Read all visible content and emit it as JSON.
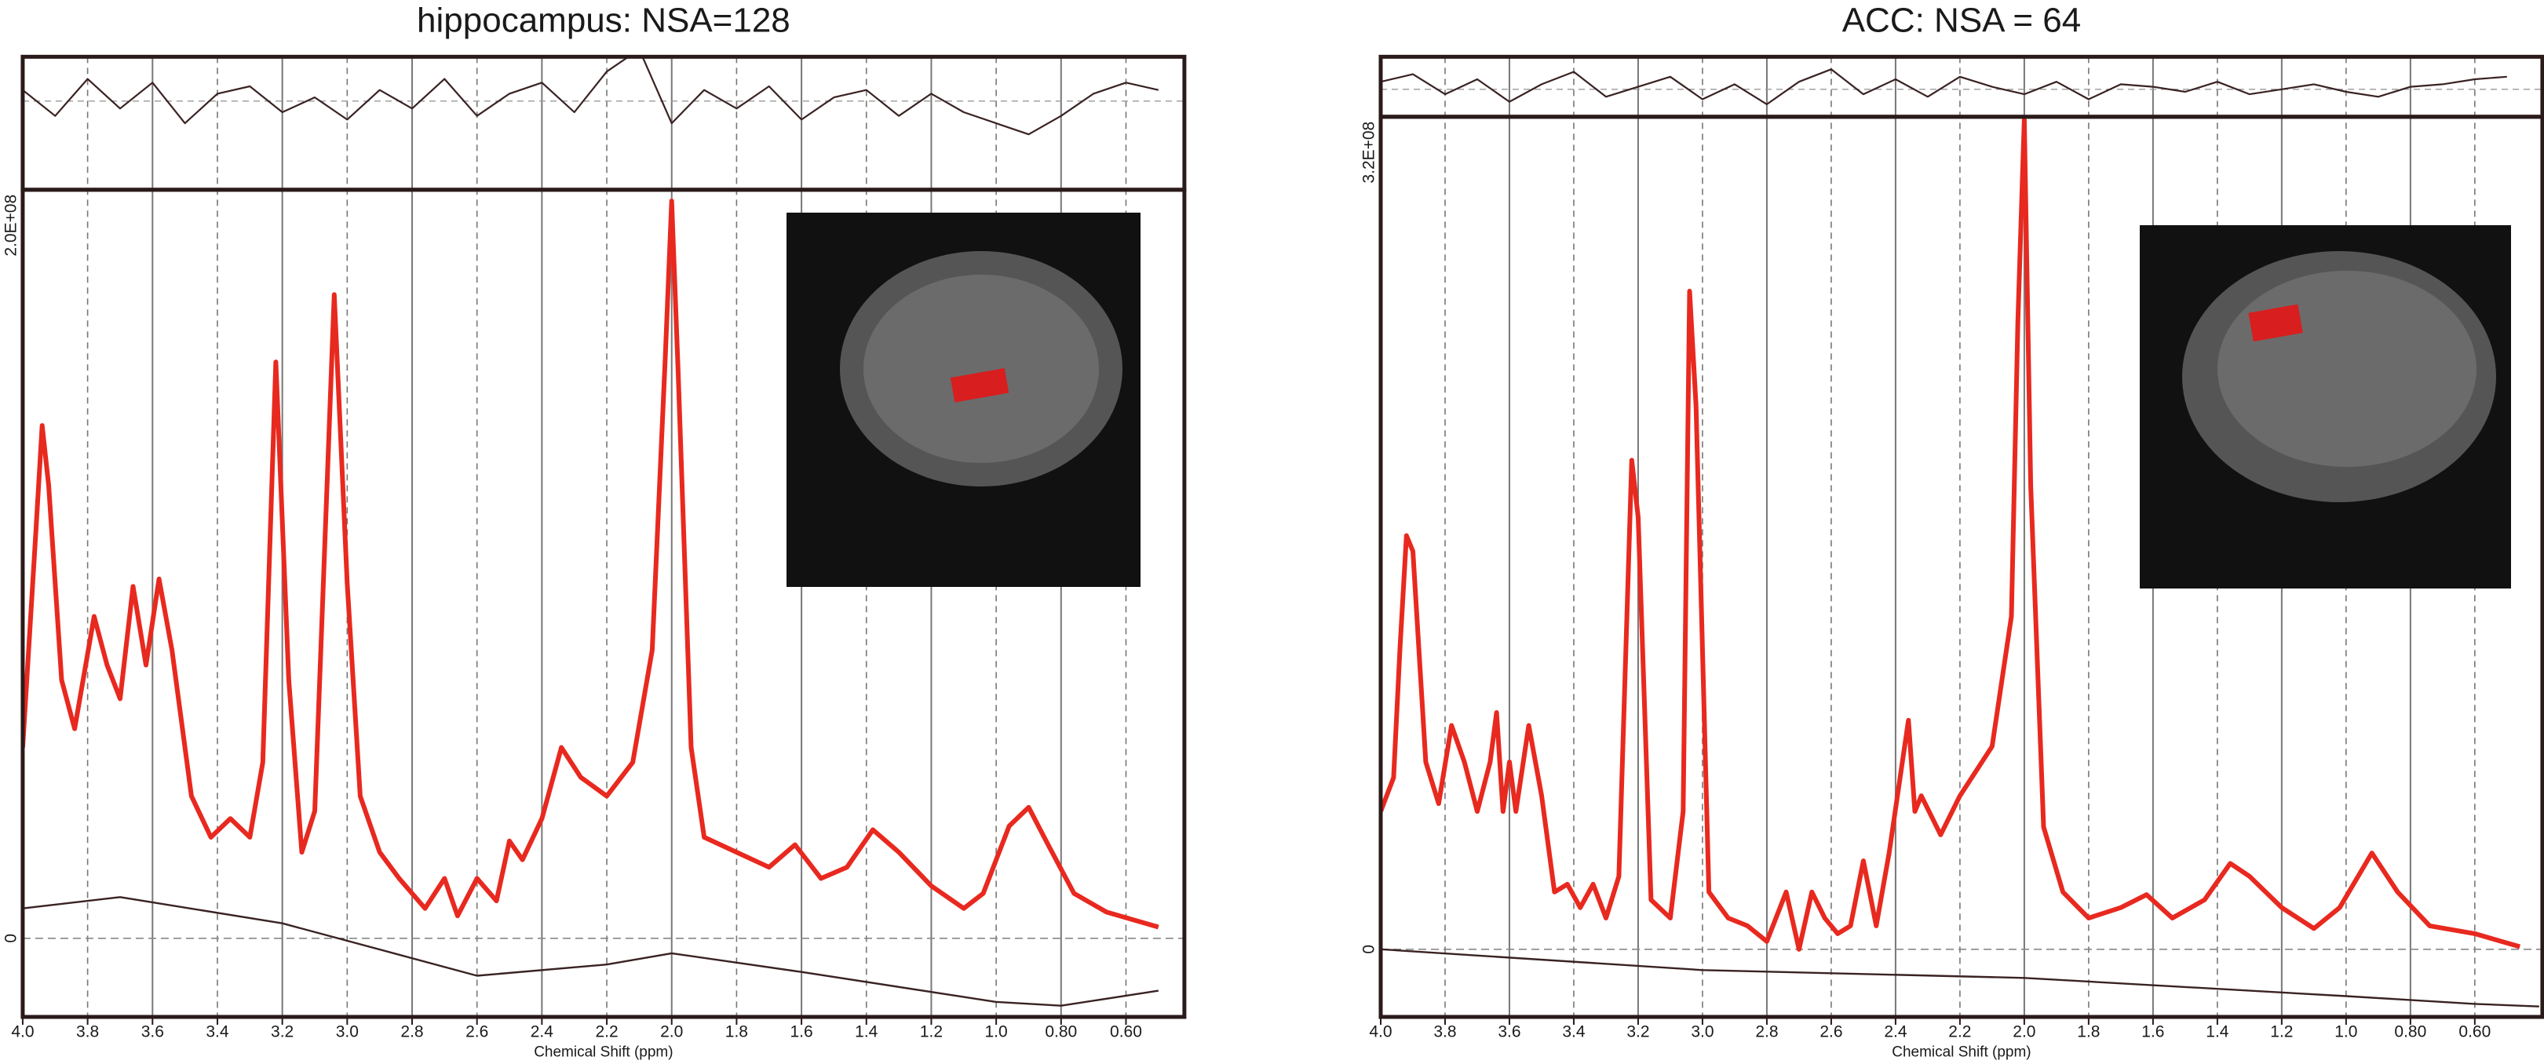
{
  "chart_data": [
    {
      "type": "line",
      "title": "hippocampus: NSA=128",
      "x_label": "Chemical Shift (ppm)",
      "xlim": [
        4.0,
        0.42
      ],
      "xticks": [
        {
          "value": 4.0,
          "label": "4.0"
        },
        3.8,
        3.6,
        3.4,
        3.2,
        {
          "value": 3.0,
          "label": "3.0"
        },
        2.8,
        2.6,
        2.4,
        2.2,
        {
          "value": 2.0,
          "label": "2.0"
        },
        1.8,
        1.6,
        1.4,
        1.2,
        {
          "value": 1.0,
          "label": "1.0"
        },
        {
          "value": 0.8,
          "label": "0.80"
        },
        {
          "value": 0.6,
          "label": "0.60"
        }
      ],
      "ylim": [
        -21000000,
        200000000
      ],
      "yticks": [
        0,
        {
          "value": 200000000,
          "label": "2.0E+08"
        }
      ],
      "series": [
        {
          "color": "#e8291f",
          "x": [
            4.0,
            3.96,
            3.94,
            3.92,
            3.88,
            3.84,
            3.78,
            3.74,
            3.7,
            3.66,
            3.62,
            3.58,
            3.54,
            3.48,
            3.42,
            3.36,
            3.3,
            3.26,
            3.22,
            3.18,
            3.14,
            3.1,
            3.04,
            3.0,
            2.96,
            2.9,
            2.84,
            2.76,
            2.7,
            2.66,
            2.6,
            2.54,
            2.5,
            2.46,
            2.4,
            2.34,
            2.28,
            2.2,
            2.12,
            2.06,
            2.02,
            2.0,
            1.98,
            1.94,
            1.9,
            1.8,
            1.7,
            1.62,
            1.54,
            1.46,
            1.38,
            1.3,
            1.2,
            1.1,
            1.04,
            0.96,
            0.9,
            0.84,
            0.76,
            0.66,
            0.5
          ],
          "values": [
            51000000,
            108000000,
            137000000,
            121000000,
            69000000,
            56000000,
            86000000,
            73000000,
            64000000,
            94000000,
            73000000,
            96000000,
            77000000,
            38000000,
            27000000,
            32000000,
            27000000,
            47000000,
            154000000,
            69000000,
            23000000,
            34000000,
            172000000,
            95000000,
            38000000,
            23000000,
            16000000,
            8000000,
            16000000,
            6000000,
            16000000,
            10000000,
            26000000,
            21000000,
            32000000,
            51000000,
            43000000,
            38000000,
            47000000,
            77000000,
            155000000,
            197000000,
            151000000,
            51000000,
            27000000,
            23000000,
            19000000,
            25000000,
            16000000,
            19000000,
            29000000,
            23000000,
            14000000,
            8000000,
            12000000,
            30000000,
            35000000,
            25000000,
            12000000,
            7000000,
            3000000
          ]
        },
        {
          "color": "#3a2222",
          "x": [
            4.0,
            3.7,
            3.2,
            2.6,
            2.2,
            2.0,
            1.6,
            1.0,
            0.8,
            0.5
          ],
          "values": [
            8000000,
            11000000,
            4000000,
            -10000000,
            -7000000,
            -4000000,
            -9000000,
            -17000000,
            -18000000,
            -14000000
          ]
        }
      ],
      "residual": {
        "color": "#3a2222",
        "ylim": [
          -24000000,
          12000000
        ],
        "x": [
          4.0,
          3.9,
          3.8,
          3.7,
          3.6,
          3.5,
          3.4,
          3.3,
          3.2,
          3.1,
          3.0,
          2.9,
          2.8,
          2.7,
          2.6,
          2.5,
          2.4,
          2.3,
          2.2,
          2.1,
          2.0,
          1.9,
          1.8,
          1.7,
          1.6,
          1.5,
          1.4,
          1.3,
          1.2,
          1.1,
          1.0,
          0.9,
          0.8,
          0.7,
          0.6,
          0.5
        ],
        "values": [
          3000000,
          -4000000,
          6000000,
          -2000000,
          5000000,
          -6000000,
          2000000,
          4000000,
          -3000000,
          1000000,
          -5000000,
          3000000,
          -2000000,
          6000000,
          -4000000,
          2000000,
          5000000,
          -3000000,
          8000000,
          14000000,
          -6000000,
          3000000,
          -2000000,
          4000000,
          -5000000,
          1000000,
          3000000,
          -4000000,
          2000000,
          -3000000,
          -6000000,
          -9000000,
          -4000000,
          2000000,
          5000000,
          3000000
        ]
      }
    },
    {
      "type": "line",
      "title": "ACC: NSA = 64",
      "x_label": "Chemical Shift (ppm)",
      "xlim": [
        4.0,
        0.39
      ],
      "xticks": [
        {
          "value": 4.0,
          "label": "4.0"
        },
        3.8,
        3.6,
        3.4,
        3.2,
        {
          "value": 3.0,
          "label": "3.0"
        },
        2.8,
        2.6,
        2.4,
        2.2,
        {
          "value": 2.0,
          "label": "2.0"
        },
        1.8,
        1.6,
        1.4,
        1.2,
        {
          "value": 1.0,
          "label": "1.0"
        },
        {
          "value": 0.8,
          "label": "0.80"
        },
        {
          "value": 0.6,
          "label": "0.60"
        }
      ],
      "ylim": [
        -26000000,
        320000000
      ],
      "yticks": [
        0,
        {
          "value": 320000000,
          "label": "3.2E+08"
        }
      ],
      "series": [
        {
          "color": "#e8291f",
          "x": [
            4.0,
            3.96,
            3.94,
            3.92,
            3.9,
            3.86,
            3.82,
            3.78,
            3.74,
            3.7,
            3.66,
            3.64,
            3.62,
            3.6,
            3.58,
            3.54,
            3.5,
            3.46,
            3.42,
            3.38,
            3.34,
            3.3,
            3.26,
            3.22,
            3.2,
            3.16,
            3.1,
            3.06,
            3.04,
            3.02,
            2.98,
            2.92,
            2.86,
            2.8,
            2.74,
            2.7,
            2.66,
            2.62,
            2.58,
            2.54,
            2.5,
            2.46,
            2.42,
            2.36,
            2.34,
            2.32,
            2.26,
            2.2,
            2.1,
            2.04,
            2.02,
            2.0,
            1.98,
            1.94,
            1.88,
            1.8,
            1.7,
            1.62,
            1.54,
            1.44,
            1.36,
            1.3,
            1.2,
            1.1,
            1.02,
            0.92,
            0.84,
            0.74,
            0.6,
            0.46
          ],
          "values": [
            53000000,
            66000000,
            116000000,
            159000000,
            153000000,
            72000000,
            56000000,
            86000000,
            72000000,
            53000000,
            72000000,
            91000000,
            53000000,
            72000000,
            53000000,
            86000000,
            59000000,
            22000000,
            25000000,
            16000000,
            25000000,
            12000000,
            28000000,
            188000000,
            166000000,
            19000000,
            12000000,
            53000000,
            253000000,
            209000000,
            22000000,
            12000000,
            9000000,
            3000000,
            22000000,
            0,
            22000000,
            12000000,
            6000000,
            9000000,
            34000000,
            9000000,
            37000000,
            88000000,
            53000000,
            59000000,
            44000000,
            59000000,
            78000000,
            128000000,
            241000000,
            319000000,
            178000000,
            47000000,
            22000000,
            12000000,
            16000000,
            21000000,
            12000000,
            19000000,
            33000000,
            28000000,
            16000000,
            8000000,
            16000000,
            37000000,
            22000000,
            9000000,
            6000000,
            1000000
          ]
        },
        {
          "color": "#3a2222",
          "x": [
            4.0,
            3.0,
            2.0,
            1.0,
            0.6,
            0.4
          ],
          "values": [
            0,
            -8000000,
            -11000000,
            -18000000,
            -21000000,
            -22000000
          ]
        }
      ],
      "residual": {
        "color": "#3a2222",
        "ylim": [
          -11000000,
          13000000
        ],
        "x": [
          4.0,
          3.9,
          3.8,
          3.7,
          3.6,
          3.5,
          3.4,
          3.3,
          3.2,
          3.1,
          3.0,
          2.9,
          2.8,
          2.7,
          2.6,
          2.5,
          2.4,
          2.3,
          2.2,
          2.1,
          2.0,
          1.9,
          1.8,
          1.7,
          1.6,
          1.5,
          1.4,
          1.3,
          1.2,
          1.1,
          1.0,
          0.9,
          0.8,
          0.7,
          0.6,
          0.5
        ],
        "values": [
          3000000,
          6000000,
          -2000000,
          4000000,
          -5000000,
          2000000,
          7000000,
          -3000000,
          1000000,
          5000000,
          -4000000,
          2000000,
          -6000000,
          3000000,
          8000000,
          -2000000,
          4000000,
          -3000000,
          5000000,
          1000000,
          -2000000,
          3000000,
          -4000000,
          2000000,
          1000000,
          -1000000,
          3000000,
          -2000000,
          0,
          2000000,
          -1000000,
          -3000000,
          1000000,
          2000000,
          4000000,
          5000000
        ]
      }
    }
  ]
}
